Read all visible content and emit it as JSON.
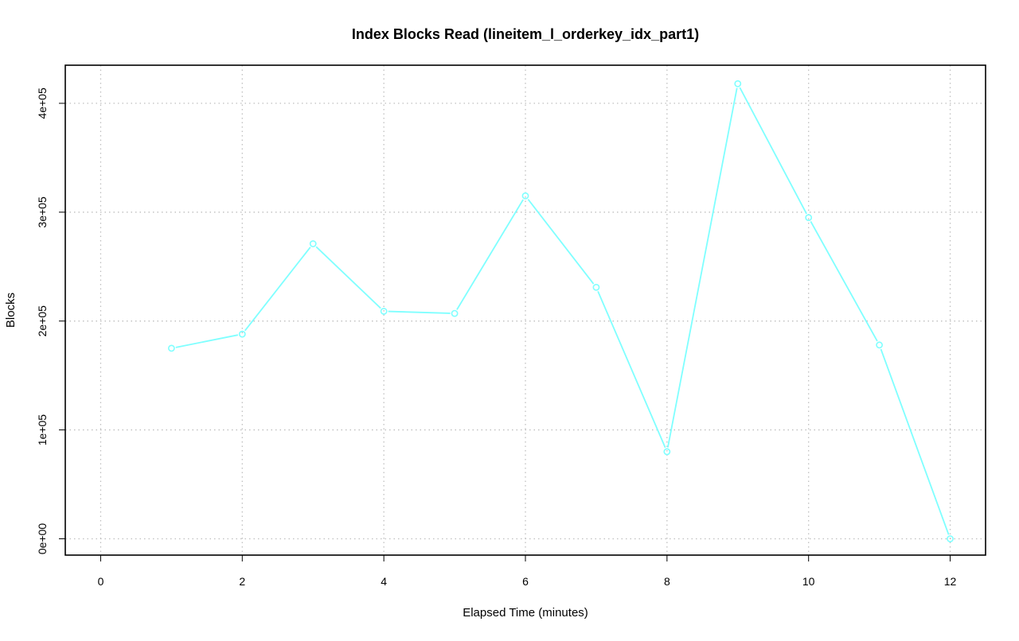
{
  "chart_data": {
    "type": "line",
    "title": "Index Blocks Read (lineitem_l_orderkey_idx_part1)",
    "xlabel": "Elapsed Time (minutes)",
    "ylabel": "Blocks",
    "xlim": [
      -0.5,
      12.5
    ],
    "ylim": [
      -15000,
      435000
    ],
    "x_ticks": [
      0,
      2,
      4,
      6,
      8,
      10,
      12
    ],
    "x_tick_labels": [
      "0",
      "2",
      "4",
      "6",
      "8",
      "10",
      "12"
    ],
    "y_ticks": [
      0,
      100000,
      200000,
      300000,
      400000
    ],
    "y_tick_labels": [
      "0e+00",
      "1e+05",
      "2e+05",
      "3e+05",
      "4e+05"
    ],
    "grid": true,
    "series": [
      {
        "color": "#7fffff",
        "x": [
          1,
          2,
          3,
          4,
          5,
          6,
          7,
          8,
          9,
          10,
          11,
          12
        ],
        "values": [
          175000,
          188000,
          271000,
          209000,
          207000,
          315000,
          231000,
          80000,
          418000,
          295000,
          178000,
          0
        ]
      }
    ]
  }
}
